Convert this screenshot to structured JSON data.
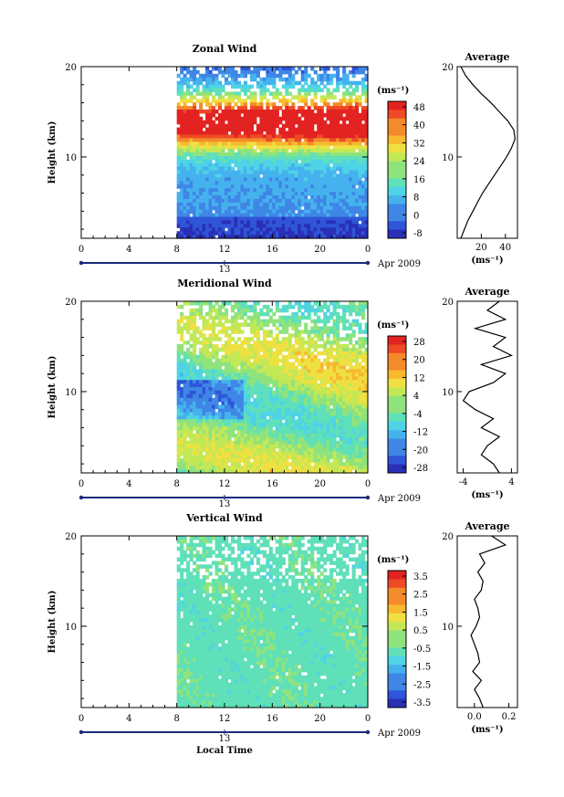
{
  "chart_data": [
    {
      "type": "heatmap",
      "title": "Zonal Wind",
      "ylabel": "Height (km)",
      "xlim": [
        0,
        24
      ],
      "ylim": [
        1,
        20
      ],
      "x_ticks": [
        "0",
        "4",
        "8",
        "12",
        "16",
        "20",
        "0"
      ],
      "y_ticks": [
        "10",
        "20"
      ],
      "date_marker": "13",
      "date_label": "Apr 2009",
      "data_start_hour": 8,
      "colorbar": {
        "unit": "(ms⁻¹)",
        "ticks": [
          "-8",
          "0",
          "8",
          "16",
          "24",
          "32",
          "40",
          "48"
        ]
      },
      "profile": {
        "title": "Average",
        "x_ticks": [
          "20",
          "40"
        ],
        "xlabel": "(ms⁻¹)",
        "xlim": [
          0,
          50
        ],
        "height_km": [
          1,
          2,
          3,
          4,
          5,
          6,
          7,
          8,
          9,
          10,
          11,
          12,
          13,
          14,
          15,
          16,
          17,
          18,
          19,
          20
        ],
        "values": [
          3,
          6,
          9,
          13,
          17,
          21,
          26,
          31,
          36,
          41,
          45,
          48,
          47,
          42,
          35,
          28,
          20,
          13,
          7,
          3
        ]
      }
    },
    {
      "type": "heatmap",
      "title": "Meridional Wind",
      "ylabel": "Height (km)",
      "xlim": [
        0,
        24
      ],
      "ylim": [
        1,
        20
      ],
      "x_ticks": [
        "0",
        "4",
        "8",
        "12",
        "16",
        "20",
        "0"
      ],
      "y_ticks": [
        "10",
        "20"
      ],
      "date_marker": "13",
      "date_label": "Apr 2009",
      "data_start_hour": 8,
      "colorbar": {
        "unit": "(ms⁻¹)",
        "ticks": [
          "-28",
          "-20",
          "-12",
          "-4",
          "4",
          "12",
          "20",
          "28"
        ]
      },
      "profile": {
        "title": "Average",
        "x_ticks": [
          "-4",
          "4"
        ],
        "xlabel": "(ms⁻¹)",
        "xlim": [
          -5,
          5
        ],
        "height_km": [
          1,
          2,
          3,
          4,
          5,
          6,
          7,
          8,
          9,
          10,
          11,
          12,
          13,
          14,
          15,
          16,
          17,
          18,
          19,
          20
        ],
        "values": [
          2,
          1,
          -1,
          0,
          2,
          -1,
          1,
          -2,
          -4,
          -3,
          1,
          3,
          -1,
          4,
          1,
          3,
          -2,
          3,
          0,
          2
        ]
      }
    },
    {
      "type": "heatmap",
      "title": "Vertical Wind",
      "ylabel": "Height (km)",
      "xlabel": "Local Time",
      "xlim": [
        0,
        24
      ],
      "ylim": [
        1,
        20
      ],
      "x_ticks": [
        "0",
        "4",
        "8",
        "12",
        "16",
        "20",
        "0"
      ],
      "y_ticks": [
        "10",
        "20"
      ],
      "date_marker": "13",
      "date_label": "Apr 2009",
      "data_start_hour": 8,
      "colorbar": {
        "unit": "(ms⁻¹)",
        "ticks": [
          "-3.5",
          "-2.5",
          "-1.5",
          "-0.5",
          "0.5",
          "1.5",
          "2.5",
          "3.5"
        ]
      },
      "profile": {
        "title": "Average",
        "x_ticks": [
          "0.0",
          "0.2"
        ],
        "xlabel": "(ms⁻¹)",
        "xlim": [
          -0.1,
          0.25
        ],
        "height_km": [
          1,
          2,
          3,
          4,
          5,
          6,
          7,
          8,
          9,
          10,
          11,
          12,
          13,
          14,
          15,
          16,
          17,
          18,
          19,
          20
        ],
        "values": [
          0.05,
          0.03,
          0.0,
          0.04,
          -0.01,
          0.03,
          0.02,
          0.0,
          -0.02,
          0.01,
          0.03,
          0.02,
          0.0,
          0.04,
          0.05,
          0.02,
          0.06,
          0.03,
          0.18,
          0.1
        ]
      }
    }
  ]
}
